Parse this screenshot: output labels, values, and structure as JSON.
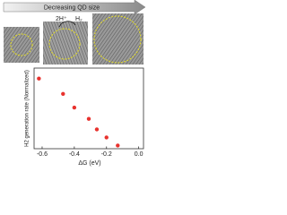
{
  "figure": {
    "arrow_label": "Decreasing QD size",
    "reactant": "2H⁺",
    "product": "H₂"
  },
  "chart_data": {
    "type": "scatter",
    "x": [
      -0.62,
      -0.47,
      -0.4,
      -0.31,
      -0.26,
      -0.2,
      -0.13
    ],
    "values": [
      0.87,
      0.68,
      0.51,
      0.37,
      0.24,
      0.14,
      0.04
    ],
    "color": "#e8322e",
    "xlim": [
      -0.65,
      0.03
    ],
    "ylim": [
      0,
      1
    ],
    "xticks": [
      {
        "value": -0.6,
        "label": "-0.6"
      },
      {
        "value": -0.4,
        "label": "-0.4"
      },
      {
        "value": -0.2,
        "label": "-0.2"
      },
      {
        "value": 0,
        "label": "0.0"
      }
    ],
    "xlabel": "ΔG (eV)",
    "ylabel": "H2 generation rate (Normalized)"
  }
}
